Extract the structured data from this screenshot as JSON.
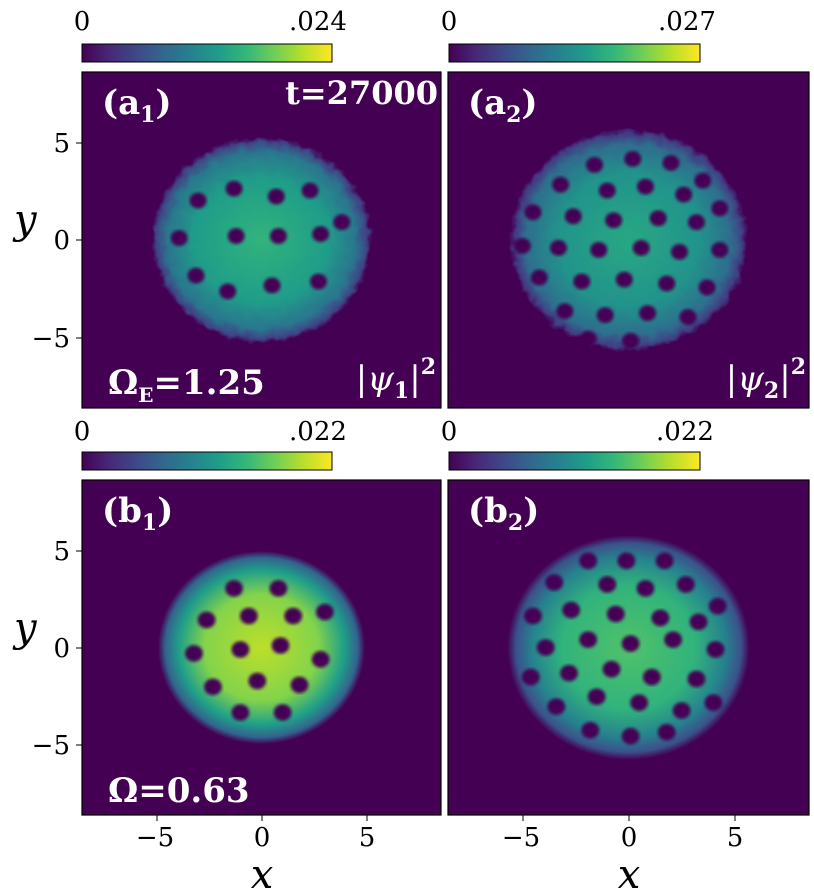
{
  "colors": {
    "viridis_stops": [
      "#440154",
      "#482878",
      "#3e4989",
      "#31688e",
      "#26828e",
      "#1f9e89",
      "#35b779",
      "#6ece58",
      "#b5de2b",
      "#fde725"
    ],
    "background": "#440154",
    "label_text": "#ffffff",
    "axis_text": "#000000"
  },
  "chart_data": [
    {
      "type": "heatmap",
      "panel": "(a1)",
      "label_main": "(a",
      "label_sub": "1",
      "label_close": ")",
      "colorbar": {
        "min": 0,
        "max": 0.024,
        "tick_min": "0",
        "tick_max": ".024"
      },
      "xlim": [
        -8.5,
        8.5
      ],
      "ylim": [
        -8.5,
        8.5
      ],
      "x_ticks": [],
      "y_ticks": [
        "5",
        "0",
        "−5"
      ],
      "y_tick_values": [
        5,
        0,
        -5
      ],
      "ylabel": "y",
      "annotations": [
        "t=27000",
        "|ψ1|²",
        "ΩE=1.25"
      ],
      "time_text": "t=27000",
      "density_main": "|ψ",
      "density_sub": "1",
      "density_close": "|",
      "density_sup": "2",
      "omega_main": "Ω",
      "omega_sub": "E",
      "omega_value": "=1.25",
      "cloud": {
        "radius": 5.2,
        "style": "noisy",
        "peak_fraction": 0.65
      },
      "vortices": [
        [
          -3.0,
          2.0
        ],
        [
          -1.3,
          2.6
        ],
        [
          0.7,
          2.2
        ],
        [
          2.3,
          2.5
        ],
        [
          3.8,
          0.9
        ],
        [
          -3.9,
          0.1
        ],
        [
          -1.2,
          0.2
        ],
        [
          0.8,
          0.2
        ],
        [
          2.8,
          0.3
        ],
        [
          -3.1,
          -1.8
        ],
        [
          -1.6,
          -2.6
        ],
        [
          0.5,
          -2.3
        ],
        [
          2.7,
          -2.1
        ]
      ]
    },
    {
      "type": "heatmap",
      "panel": "(a2)",
      "label_main": "(a",
      "label_sub": "2",
      "label_close": ")",
      "colorbar": {
        "min": 0,
        "max": 0.027,
        "tick_min": "0",
        "tick_max": ".027"
      },
      "xlim": [
        -8.5,
        8.5
      ],
      "ylim": [
        -8.5,
        8.5
      ],
      "x_ticks": [],
      "y_ticks": [],
      "density_main": "|ψ",
      "density_sub": "2",
      "density_close": "|",
      "density_sup": "2",
      "cloud": {
        "radius": 5.6,
        "style": "noisy",
        "peak_fraction": 0.6
      },
      "vortices": [
        [
          -1.6,
          3.8
        ],
        [
          0.2,
          4.1
        ],
        [
          2.0,
          3.9
        ],
        [
          3.5,
          3.0
        ],
        [
          -3.2,
          2.8
        ],
        [
          -1.0,
          2.5
        ],
        [
          0.8,
          2.7
        ],
        [
          2.6,
          2.3
        ],
        [
          4.3,
          1.6
        ],
        [
          -4.5,
          1.4
        ],
        [
          -2.6,
          1.2
        ],
        [
          -0.7,
          1.0
        ],
        [
          1.4,
          1.1
        ],
        [
          3.2,
          0.9
        ],
        [
          -5.0,
          -0.3
        ],
        [
          -3.3,
          -0.4
        ],
        [
          -1.4,
          -0.5
        ],
        [
          0.6,
          -0.4
        ],
        [
          2.4,
          -0.6
        ],
        [
          4.3,
          -0.5
        ],
        [
          -4.2,
          -1.9
        ],
        [
          -2.2,
          -2.1
        ],
        [
          -0.2,
          -2.0
        ],
        [
          1.8,
          -2.2
        ],
        [
          3.7,
          -2.4
        ],
        [
          -3.0,
          -3.6
        ],
        [
          -1.1,
          -3.8
        ],
        [
          0.9,
          -3.7
        ],
        [
          2.8,
          -3.9
        ],
        [
          -1.9,
          -5.0
        ],
        [
          0.1,
          -5.1
        ]
      ]
    },
    {
      "type": "heatmap",
      "panel": "(b1)",
      "label_main": "(b",
      "label_sub": "1",
      "label_close": ")",
      "colorbar": {
        "min": 0,
        "max": 0.022,
        "tick_min": "0",
        "tick_max": ".022"
      },
      "xlim": [
        -8.5,
        8.5
      ],
      "ylim": [
        -8.5,
        8.5
      ],
      "x_ticks": [
        "−5",
        "0",
        "5"
      ],
      "x_tick_values": [
        -5,
        0,
        5
      ],
      "y_ticks": [
        "5",
        "0",
        "−5"
      ],
      "y_tick_values": [
        5,
        0,
        -5
      ],
      "xlabel": "x",
      "ylabel": "y",
      "omega_main": "Ω",
      "omega_value": "=0.63",
      "cloud": {
        "radius": 4.9,
        "style": "smooth",
        "peak_fraction": 0.9
      },
      "vortices": [
        [
          -1.3,
          3.0
        ],
        [
          0.8,
          3.0
        ],
        [
          -2.6,
          1.4
        ],
        [
          -0.6,
          1.6
        ],
        [
          1.5,
          1.6
        ],
        [
          3.0,
          1.8
        ],
        [
          -3.2,
          -0.3
        ],
        [
          -1.0,
          -0.1
        ],
        [
          0.9,
          0.1
        ],
        [
          2.8,
          -0.6
        ],
        [
          -2.3,
          -2.0
        ],
        [
          -0.2,
          -1.7
        ],
        [
          1.8,
          -1.9
        ],
        [
          -1.0,
          -3.3
        ],
        [
          1.0,
          -3.3
        ]
      ]
    },
    {
      "type": "heatmap",
      "panel": "(b2)",
      "label_main": "(b",
      "label_sub": "2",
      "label_close": ")",
      "colorbar": {
        "min": 0,
        "max": 0.022,
        "tick_min": "0",
        "tick_max": ".022"
      },
      "xlim": [
        -8.5,
        8.5
      ],
      "ylim": [
        -8.5,
        8.5
      ],
      "x_ticks": [
        "−5",
        "0",
        "5"
      ],
      "x_tick_values": [
        -5,
        0,
        5
      ],
      "y_ticks": [],
      "xlabel": "x",
      "cloud": {
        "radius": 5.7,
        "style": "smooth",
        "peak_fraction": 0.72
      },
      "vortices": [
        [
          -1.9,
          4.4
        ],
        [
          -0.1,
          4.4
        ],
        [
          1.7,
          4.4
        ],
        [
          -3.5,
          3.3
        ],
        [
          -1.0,
          3.2
        ],
        [
          0.8,
          3.0
        ],
        [
          2.7,
          3.2
        ],
        [
          4.2,
          2.1
        ],
        [
          -4.5,
          1.6
        ],
        [
          -2.7,
          1.9
        ],
        [
          -0.6,
          1.7
        ],
        [
          1.5,
          1.5
        ],
        [
          3.3,
          1.3
        ],
        [
          -3.9,
          0.0
        ],
        [
          -1.9,
          0.4
        ],
        [
          0.1,
          0.2
        ],
        [
          2.1,
          0.4
        ],
        [
          4.1,
          -0.1
        ],
        [
          -4.6,
          -1.5
        ],
        [
          -2.8,
          -1.3
        ],
        [
          -0.8,
          -1.1
        ],
        [
          1.1,
          -1.5
        ],
        [
          3.2,
          -1.6
        ],
        [
          -3.4,
          -3.0
        ],
        [
          -1.5,
          -2.5
        ],
        [
          0.5,
          -2.8
        ],
        [
          2.5,
          -3.2
        ],
        [
          4.0,
          -2.8
        ],
        [
          -1.8,
          -4.2
        ],
        [
          0.1,
          -4.5
        ],
        [
          1.8,
          -4.3
        ]
      ]
    }
  ]
}
